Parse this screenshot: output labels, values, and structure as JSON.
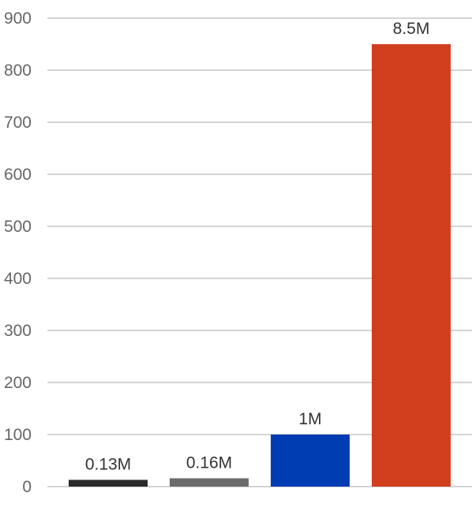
{
  "chart_data": {
    "type": "bar",
    "title": "",
    "xlabel": "",
    "ylabel": "",
    "ylim": [
      0,
      900
    ],
    "y_ticks": [
      "0",
      "100",
      "200",
      "300",
      "400",
      "500",
      "600",
      "700",
      "800",
      "900"
    ],
    "grid": true,
    "legend": "none",
    "bars": [
      {
        "value": 13,
        "label": "0.13M",
        "color": "#2b2b2b"
      },
      {
        "value": 16,
        "label": "0.16M",
        "color": "#6b6b6b"
      },
      {
        "value": 100,
        "label": "1M",
        "color": "#003db3"
      },
      {
        "value": 850,
        "label": "8.5M",
        "color": "#d13f1f"
      }
    ]
  }
}
